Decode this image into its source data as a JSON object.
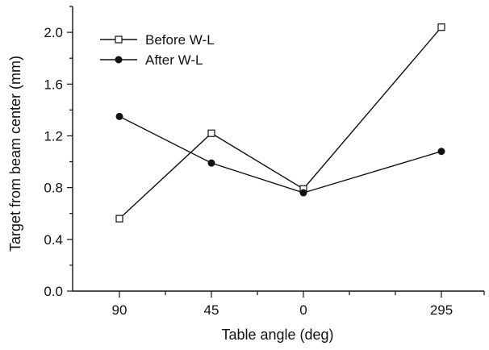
{
  "chart_data": {
    "type": "line",
    "title": "",
    "xlabel": "Table angle (deg)",
    "ylabel": "Target from beam center (mm)",
    "categories": [
      "90",
      "45",
      "0",
      "295"
    ],
    "ylim": [
      0.0,
      2.2
    ],
    "yticks": [
      "0.0",
      "0.4",
      "0.8",
      "1.2",
      "1.6",
      "2.0"
    ],
    "grid": false,
    "legend_position": "top-left",
    "series": [
      {
        "name": "Before W-L",
        "marker": "open-square",
        "values": [
          0.56,
          1.22,
          0.79,
          2.04
        ]
      },
      {
        "name": "After W-L",
        "marker": "filled-circle",
        "values": [
          1.35,
          0.99,
          0.76,
          1.08
        ]
      }
    ],
    "colors": {
      "line": "#111111",
      "background": "#ffffff"
    }
  }
}
